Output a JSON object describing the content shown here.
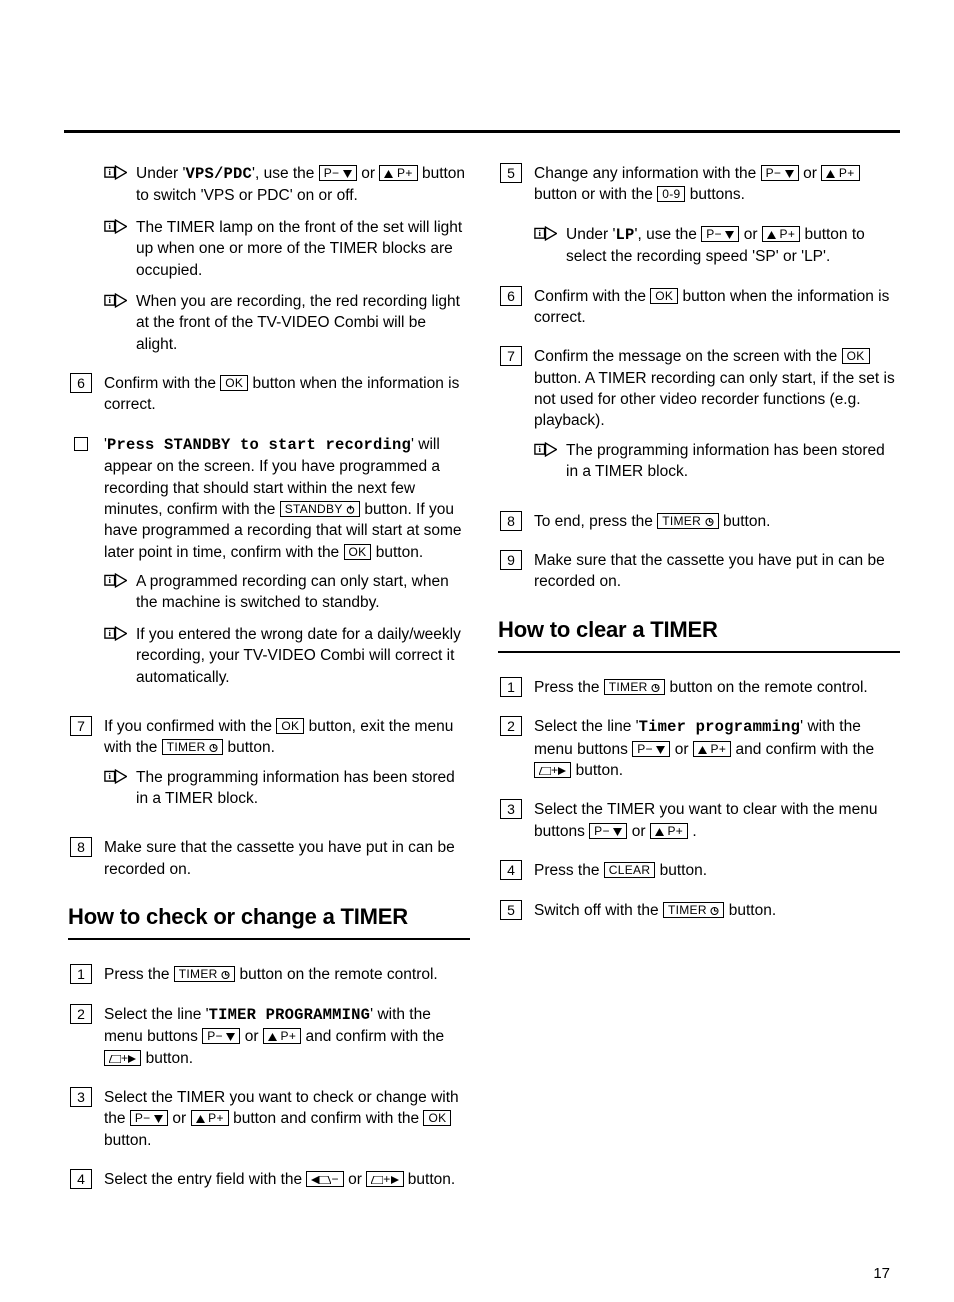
{
  "page_number": "17",
  "icons": {
    "tip_svg": "<svg viewBox='0 0 100 80'><rect x='4' y='18' width='42' height='42' fill='none' stroke='#000' stroke-width='6'/><text x='25' y='50' text-anchor='middle' font-family='serif' font-size='38' font-weight='bold'>i</text><polygon points='50,12 50,68 98,40' fill='none' stroke='#000' stroke-width='6'/></svg>",
    "p_down": "P− <svg width='9' height='8'><polygon points='0,0 9,0 4.5,8' fill='#000'/></svg>",
    "p_up": "<svg width='9' height='8'><polygon points='0,8 9,8 4.5,0' fill='#000'/></svg> P+",
    "ok": "OK",
    "standby": "STANDBY <svg width='9' height='9'><circle cx='4.5' cy='5' r='3.2' fill='none' stroke='#000' stroke-width='1.1'/><line x1='4.5' y1='0.5' x2='4.5' y2='4.5' stroke='#000' stroke-width='1.3'/></svg>",
    "timer": "TIMER <svg width='9' height='9'><circle cx='4.5' cy='5' r='3.5' fill='none' stroke='#000' stroke-width='1.1'/><line x1='4.5' y1='5' x2='4.5' y2='2.2' stroke='#000' stroke-width='1.1'/><line x1='4.5' y1='5' x2='7' y2='5' stroke='#000' stroke-width='1.1'/></svg>",
    "left": "<svg width='8' height='8'><polygon points='8,0 8,8 0,4' fill='#000'/></svg><svg width='12' height='8'><polygon points='0,8 12,8 9,0 0,0' fill='none' stroke='#000' stroke-width='1'/></svg>−",
    "right": "<svg width='12' height='8'><polygon points='0,8 12,8 12,0 3,0' fill='none' stroke='#000' stroke-width='1'/></svg>+<svg width='8' height='8'><polygon points='0,0 0,8 8,4' fill='#000'/></svg>",
    "digits": "0-9",
    "clear": "CLEAR"
  },
  "col1": {
    "tips1": [
      {
        "pre": "Under '",
        "mono": "VPS/PDC",
        "mid": "', use the ",
        "b1": "p_down",
        "mid2": " or ",
        "b2": "p_up",
        "post": " button to switch 'VPS or PDC' on or off."
      },
      {
        "text": "The TIMER lamp on the front of the set will light up when one or more of the TIMER blocks are occupied."
      },
      {
        "text": "When you are recording, the red recording light at the front of the TV-VIDEO Combi will be alight."
      }
    ],
    "step6": {
      "pre": "Confirm with the ",
      "b1": "ok",
      "post": " button when the information is correct."
    },
    "note": {
      "pre": "'",
      "mono": "Press STANDBY to start recording",
      "mid": "' will appear on the screen. If you have programmed a recording that should start within the next few minutes, confirm with the ",
      "b1": "standby",
      "mid2": " button. If you have programmed a recording that will start at some later point in time, confirm with the ",
      "b2": "ok",
      "post": " button.",
      "tips": [
        {
          "text": "A programmed recording can only start, when the machine is switched to standby."
        },
        {
          "text": "If you entered the wrong date for a daily/weekly recording, your TV-VIDEO Combi will correct it automatically."
        }
      ]
    },
    "step7": {
      "pre": "If you confirmed with the ",
      "b1": "ok",
      "mid": " button, exit the menu with the ",
      "b2": "timer",
      "post": " button.",
      "tips": [
        {
          "text": "The programming information has been stored in a TIMER block."
        }
      ]
    },
    "step8": {
      "text": "Make sure that the cassette you have put in can be recorded on."
    },
    "heading1": "How to check or change a TIMER",
    "check": {
      "1": {
        "pre": "Press the ",
        "b1": "timer",
        "post": " button on the remote control."
      },
      "2": {
        "pre": "Select the line '",
        "mono": "TIMER PROGRAMMING",
        "mid": "' with the menu buttons ",
        "b1": "p_down",
        "mid2": " or ",
        "b2": "p_up",
        "mid3": " and confirm with the ",
        "b3": "right",
        "post": " button."
      },
      "3": {
        "pre": "Select the TIMER you want to check or change with the ",
        "b1": "p_down",
        "mid": " or ",
        "b2": "p_up",
        "mid2": " button and confirm with the ",
        "b3": "ok",
        "post": " button."
      },
      "4": {
        "pre": "Select the entry field with the ",
        "b1": "left",
        "mid": " or ",
        "b2": "right",
        "post": " button."
      },
      "5": {
        "pre": "Change any information with the ",
        "b1": "p_down",
        "mid": " or ",
        "b2": "p_up",
        "mid2": " button or with the ",
        "b3": "digits",
        "post": " buttons."
      }
    }
  },
  "col2": {
    "tip_lp": {
      "pre": "Under '",
      "mono": "LP",
      "mid": "', use the ",
      "b1": "p_down",
      "mid2": " or ",
      "b2": "p_up",
      "post": " button to select the recording speed 'SP' or 'LP'."
    },
    "step6": {
      "pre": "Confirm with the ",
      "b1": "ok",
      "post": " button when the information is correct."
    },
    "step7": {
      "pre": "Confirm the message on the screen with the ",
      "b1": "ok",
      "post": " button. A TIMER recording can only start, if the set is not used for other video recorder functions (e.g. playback).",
      "tips": [
        {
          "text": "The programming information has been stored in a TIMER block."
        }
      ]
    },
    "step8": {
      "pre": "To end, press the ",
      "b1": "timer",
      "post": " button."
    },
    "step9": {
      "text": "Make sure that the cassette you have put in can be recorded on."
    },
    "heading2": "How to clear a TIMER",
    "clear": {
      "1": {
        "pre": "Press the ",
        "b1": "timer",
        "post": " button on the remote control."
      },
      "2": {
        "pre": "Select the line '",
        "mono": "Timer programming",
        "mid": "' with the menu buttons ",
        "b1": "p_down",
        "mid2": " or ",
        "b2": "p_up",
        "mid3": " and confirm with the ",
        "b3": "right",
        "post": " button."
      },
      "3": {
        "pre": "Select the TIMER you want to clear with the menu buttons ",
        "b1": "p_down",
        "mid": " or ",
        "b2": "p_up",
        "post": " ."
      },
      "4": {
        "pre": "Press the ",
        "b1": "clear",
        "post": " button."
      },
      "5": {
        "pre": "Switch off with the ",
        "b1": "timer",
        "post": " button."
      }
    }
  }
}
